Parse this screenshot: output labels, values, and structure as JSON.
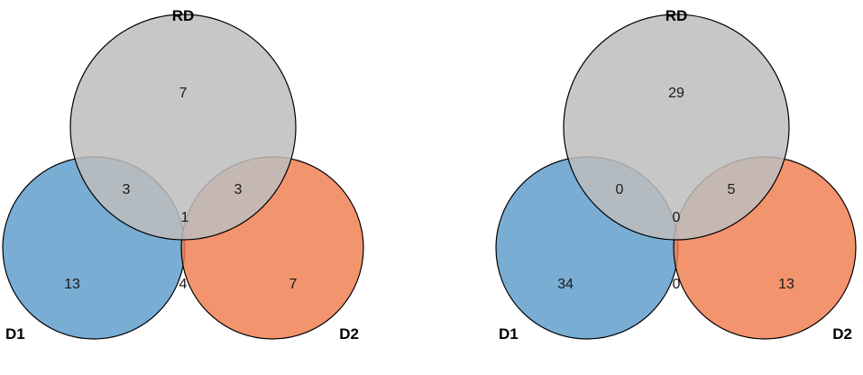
{
  "sets": {
    "rd": {
      "label": "RD",
      "color": "#bdbdbd"
    },
    "d1": {
      "label": "D1",
      "color": "#5b9bcb"
    },
    "d2": {
      "label": "D2",
      "color": "#ef7d4e"
    }
  },
  "diagrams": [
    {
      "counts": {
        "rd_only": "7",
        "d1_only": "13",
        "d2_only": "7",
        "rd_d1": "3",
        "rd_d2": "3",
        "d1_d2": "4",
        "all": "1"
      }
    },
    {
      "counts": {
        "rd_only": "29",
        "d1_only": "34",
        "d2_only": "13",
        "rd_d1": "0",
        "rd_d2": "5",
        "d1_d2": "0",
        "all": "0"
      }
    }
  ]
}
